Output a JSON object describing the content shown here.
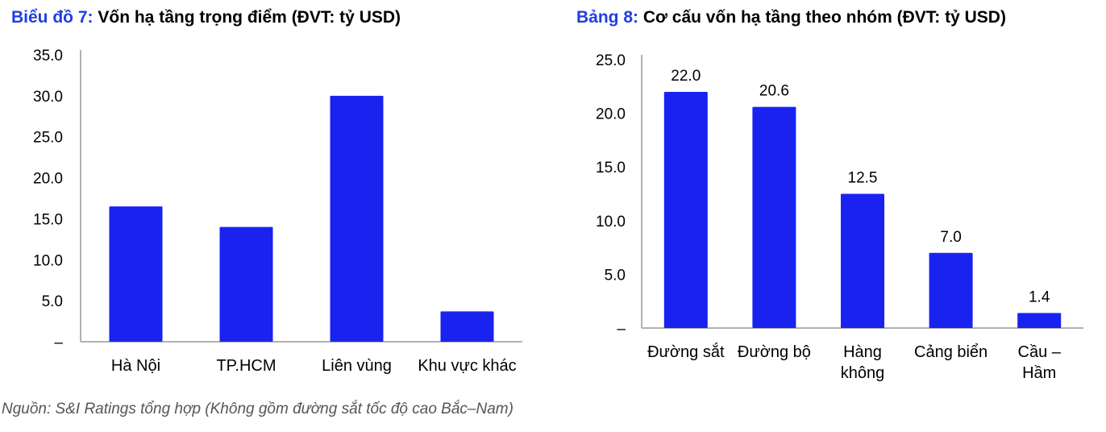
{
  "left_title": {
    "prefix": "Biểu đồ 7:",
    "text": "Vốn hạ tầng trọng điểm (ĐVT: tỷ USD)"
  },
  "right_title": {
    "prefix": "Bảng 8:",
    "text": "Cơ cấu vốn hạ tầng theo nhóm (ĐVT: tỷ USD)"
  },
  "source": "Nguồn: S&I Ratings tổng hợp (Không gồm đường sắt tốc độ cao Bắc–Nam)",
  "colors": {
    "bar": "#1a22f0",
    "axis": "#999999",
    "title_prefix": "#1f3fe0"
  },
  "chart_data": [
    {
      "type": "bar",
      "title": "Vốn hạ tầng trọng điểm (ĐVT: tỷ USD)",
      "categories": [
        [
          "Hà Nội"
        ],
        [
          "TP.HCM"
        ],
        [
          "Liên vùng"
        ],
        [
          "Khu vực khác"
        ]
      ],
      "values": [
        16.5,
        14.0,
        30.0,
        3.7
      ],
      "ylim": [
        0,
        35
      ],
      "yticks": [
        "–",
        "5.0",
        "10.0",
        "15.0",
        "20.0",
        "25.0",
        "30.0",
        "35.0"
      ],
      "data_labels": false,
      "grid": false
    },
    {
      "type": "bar",
      "title": "Cơ cấu vốn hạ tầng theo nhóm (ĐVT: tỷ USD)",
      "categories": [
        [
          "Đường sắt"
        ],
        [
          "Đường bộ"
        ],
        [
          "Hàng",
          "không"
        ],
        [
          "Cảng biển"
        ],
        [
          "Cầu –",
          "Hầm"
        ]
      ],
      "values": [
        22.0,
        20.6,
        12.5,
        7.0,
        1.4
      ],
      "value_labels": [
        "22.0",
        "20.6",
        "12.5",
        "7.0",
        "1.4"
      ],
      "ylim": [
        0,
        25
      ],
      "yticks": [
        "–",
        "5.0",
        "10.0",
        "15.0",
        "20.0",
        "25.0"
      ],
      "data_labels": true,
      "grid": false
    }
  ]
}
